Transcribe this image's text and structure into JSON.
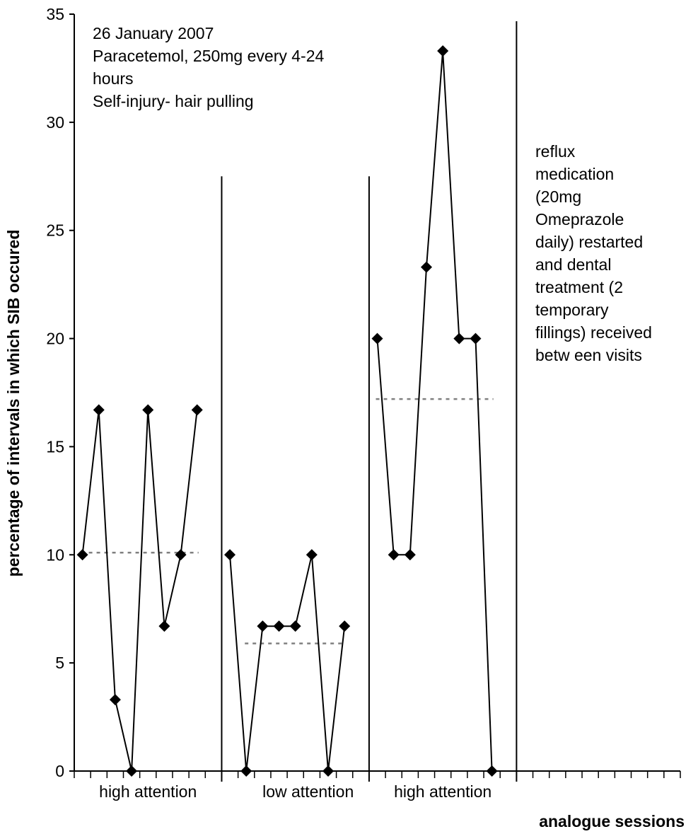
{
  "chart_data": {
    "type": "line",
    "title": "",
    "xlabel": "analogue sessions",
    "ylabel": "percentage of intervals in which SIB occured",
    "ylim": [
      0,
      35
    ],
    "yticks": [
      0,
      5,
      10,
      15,
      20,
      25,
      30,
      35
    ],
    "x_sessions_total": 37,
    "grid": false,
    "legend": "none",
    "colors": {
      "line": "#000000",
      "marker": "#000000",
      "mean_line": "#808080"
    },
    "phases": [
      {
        "label": "high attention",
        "sessions": [
          1,
          2,
          3,
          4,
          5,
          6,
          7,
          8
        ],
        "values": [
          10,
          16.7,
          3.3,
          0,
          16.7,
          6.7,
          10,
          16.7
        ],
        "mean": 10.1,
        "mean_range": [
          1,
          8
        ]
      },
      {
        "label": "low attention",
        "sessions": [
          10,
          11,
          12,
          13,
          14,
          15,
          16,
          17
        ],
        "values": [
          10,
          0,
          6.7,
          6.7,
          6.7,
          10,
          0,
          6.7
        ],
        "mean": 5.9,
        "mean_range": [
          11,
          17
        ]
      },
      {
        "label": "high attention",
        "sessions": [
          19,
          20,
          21,
          22,
          23,
          24,
          25,
          26
        ],
        "values": [
          20,
          10,
          10,
          23.3,
          33.3,
          20,
          20,
          0
        ],
        "mean": 17.2,
        "mean_range": [
          19,
          26
        ]
      }
    ],
    "phase_lines_after_session": [
      9,
      18,
      27
    ],
    "annotations": {
      "top_left": [
        "26 January 2007",
        "Paracetemol, 250mg every 4-24",
        "hours",
        "Self-injury- hair pulling"
      ],
      "right": [
        "reflux",
        "medication",
        "(20mg",
        "Omeprazole",
        "daily) restarted",
        "and dental",
        "treatment (2",
        "temporary",
        "fillings) received",
        "betw een visits"
      ]
    }
  }
}
